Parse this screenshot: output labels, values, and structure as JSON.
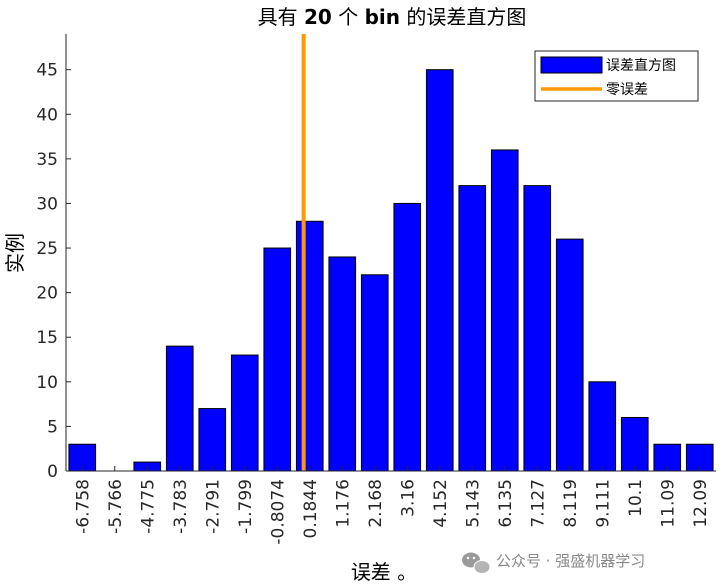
{
  "chart_data": {
    "type": "bar",
    "title": "具有 20 个 bin 的误差直方图",
    "title_parts": {
      "pre": "具有 ",
      "bold1": "20",
      "mid": " 个 ",
      "bold2": "bin",
      "post": " 的误差直方图"
    },
    "xlabel": "误差 。",
    "ylabel": "实例",
    "categories": [
      "-6.758",
      "-5.766",
      "-4.775",
      "-3.783",
      "-2.791",
      "-1.799",
      "-0.8074",
      "0.1844",
      "1.176",
      "2.168",
      "3.16",
      "4.152",
      "5.143",
      "6.135",
      "7.127",
      "8.119",
      "9.111",
      "10.1",
      "11.09",
      "12.09"
    ],
    "values": [
      3,
      0,
      1,
      14,
      7,
      13,
      25,
      28,
      24,
      22,
      30,
      45,
      32,
      36,
      32,
      26,
      10,
      6,
      3,
      3
    ],
    "ylim": [
      0,
      49
    ],
    "yticks": [
      0,
      5,
      10,
      15,
      20,
      25,
      30,
      35,
      40,
      45
    ],
    "zero_error_x": 0,
    "bar_color": "#0000ff",
    "zero_line_color": "#ff9900",
    "grid": false,
    "legend_placement": "top-right",
    "legend": [
      {
        "label": "误差直方图",
        "kind": "bar",
        "color": "#0000ff"
      },
      {
        "label": "零误差",
        "kind": "line",
        "color": "#ff9900"
      }
    ]
  },
  "watermark": {
    "text": "公众号 · 强盛机器学习",
    "icon": "wechat-icon"
  }
}
